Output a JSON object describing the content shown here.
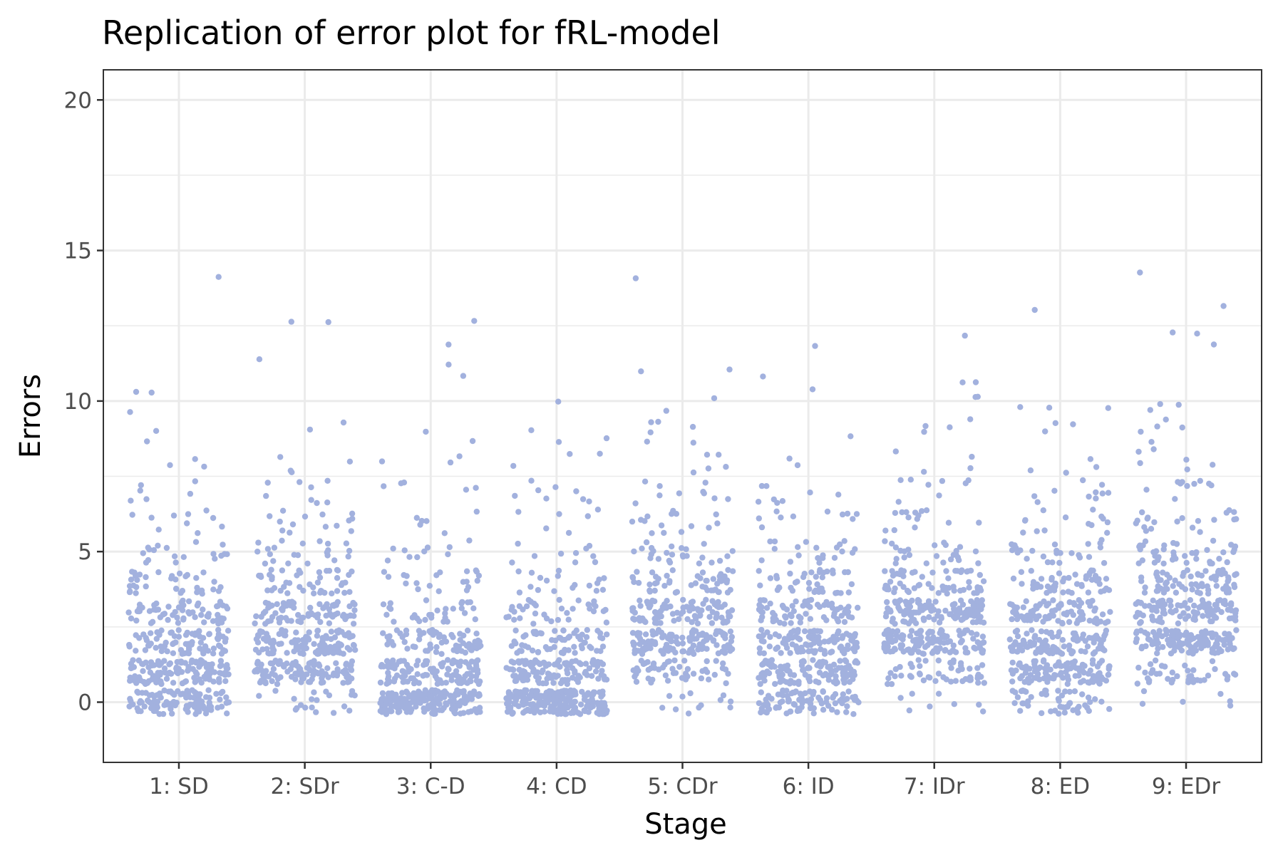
{
  "chart_data": {
    "type": "scatter",
    "title": "Replication of error plot for fRL-model",
    "xlabel": "Stage",
    "ylabel": "Errors",
    "ylim": [
      -2,
      21
    ],
    "y_ticks": [
      0,
      5,
      10,
      15,
      20
    ],
    "y_minor_ticks": [
      2.5,
      7.5,
      12.5,
      17.5
    ],
    "categories": [
      "1: SD",
      "2: SDr",
      "3: C-D",
      "4: CD",
      "5: CDr",
      "6: ID",
      "7: IDr",
      "8: ED",
      "9: EDr"
    ],
    "jitter_width": 0.4,
    "jitter_height": 0.4,
    "grid": true,
    "legend": "none",
    "point_color": "#a2b1de",
    "error_counts": [
      {
        "stage": "1: SD",
        "counts": [
          110,
          120,
          80,
          60,
          35,
          18,
          10,
          6,
          3,
          2,
          3,
          0,
          0,
          0,
          1
        ]
      },
      {
        "stage": "2: SDr",
        "counts": [
          20,
          110,
          120,
          80,
          45,
          22,
          14,
          8,
          4,
          2,
          0,
          1,
          0,
          2,
          0
        ]
      },
      {
        "stage": "3: C-D",
        "counts": [
          190,
          110,
          70,
          30,
          20,
          10,
          6,
          5,
          3,
          2,
          0,
          2,
          1,
          1,
          0
        ]
      },
      {
        "stage": "4: CD",
        "counts": [
          210,
          115,
          65,
          35,
          18,
          10,
          6,
          8,
          3,
          3,
          1,
          0,
          0,
          0,
          0
        ]
      },
      {
        "stage": "5: CDr",
        "counts": [
          12,
          50,
          120,
          95,
          50,
          25,
          15,
          10,
          5,
          6,
          2,
          2,
          0,
          0,
          1
        ]
      },
      {
        "stage": "6: ID",
        "counts": [
          90,
          120,
          100,
          70,
          40,
          20,
          10,
          8,
          2,
          1,
          1,
          1,
          1,
          0,
          0
        ]
      },
      {
        "stage": "7: IDr",
        "counts": [
          8,
          50,
          130,
          120,
          60,
          25,
          14,
          8,
          4,
          4,
          2,
          2,
          1,
          0,
          0
        ]
      },
      {
        "stage": "8: ED",
        "counts": [
          50,
          110,
          110,
          90,
          50,
          25,
          14,
          10,
          4,
          3,
          3,
          0,
          0,
          1,
          0
        ]
      },
      {
        "stage": "9: EDr",
        "counts": [
          6,
          40,
          130,
          100,
          70,
          40,
          20,
          10,
          6,
          5,
          3,
          0,
          3,
          1,
          1
        ]
      }
    ]
  }
}
